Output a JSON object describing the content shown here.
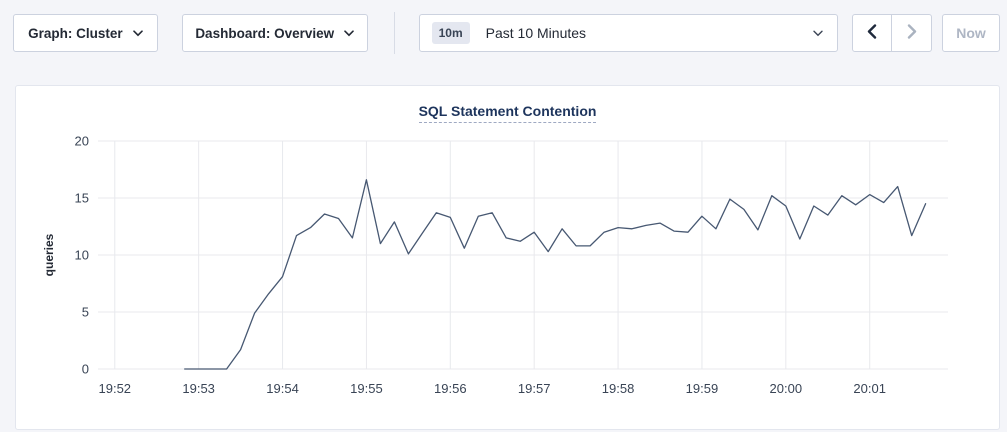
{
  "toolbar": {
    "graph_dropdown_label": "Graph: Cluster",
    "dashboard_dropdown_label": "Dashboard: Overview",
    "time_range": {
      "badge": "10m",
      "label": "Past 10 Minutes"
    },
    "now_label": "Now"
  },
  "colors": {
    "line": "#475872",
    "grid": "#e8e9ed",
    "title": "#1d345c",
    "arrow_enabled": "#1f2a3c",
    "arrow_disabled": "#aab3c0"
  },
  "chart_data": {
    "type": "line",
    "title": "SQL Statement Contention",
    "xlabel": "",
    "ylabel": "queries",
    "ylim": [
      0,
      20
    ],
    "y_ticks": [
      0,
      5,
      10,
      15,
      20
    ],
    "x_domain_s": [
      -12,
      596
    ],
    "x_ticks": [
      {
        "offset_s": 0,
        "label": "19:52"
      },
      {
        "offset_s": 60,
        "label": "19:53"
      },
      {
        "offset_s": 120,
        "label": "19:54"
      },
      {
        "offset_s": 180,
        "label": "19:55"
      },
      {
        "offset_s": 240,
        "label": "19:56"
      },
      {
        "offset_s": 300,
        "label": "19:57"
      },
      {
        "offset_s": 360,
        "label": "19:58"
      },
      {
        "offset_s": 420,
        "label": "19:59"
      },
      {
        "offset_s": 480,
        "label": "20:00"
      },
      {
        "offset_s": 540,
        "label": "20:01"
      }
    ],
    "grid": true,
    "legend": "none",
    "series": [
      {
        "name": "queries",
        "color": "#475872",
        "points": [
          [
            50,
            0
          ],
          [
            60,
            0
          ],
          [
            70,
            0
          ],
          [
            80,
            0
          ],
          [
            90,
            1.7
          ],
          [
            100,
            4.9
          ],
          [
            110,
            6.6
          ],
          [
            120,
            8.1
          ],
          [
            130,
            11.7
          ],
          [
            140,
            12.4
          ],
          [
            150,
            13.6
          ],
          [
            160,
            13.2
          ],
          [
            170,
            11.5
          ],
          [
            180,
            16.6
          ],
          [
            190,
            11.0
          ],
          [
            200,
            12.9
          ],
          [
            210,
            10.1
          ],
          [
            220,
            11.9
          ],
          [
            230,
            13.7
          ],
          [
            240,
            13.3
          ],
          [
            250,
            10.6
          ],
          [
            260,
            13.4
          ],
          [
            270,
            13.7
          ],
          [
            280,
            11.5
          ],
          [
            290,
            11.2
          ],
          [
            300,
            12.0
          ],
          [
            310,
            10.3
          ],
          [
            320,
            12.3
          ],
          [
            330,
            10.8
          ],
          [
            340,
            10.8
          ],
          [
            350,
            12.0
          ],
          [
            360,
            12.4
          ],
          [
            370,
            12.3
          ],
          [
            380,
            12.6
          ],
          [
            390,
            12.8
          ],
          [
            400,
            12.1
          ],
          [
            410,
            12.0
          ],
          [
            420,
            13.4
          ],
          [
            430,
            12.3
          ],
          [
            440,
            14.9
          ],
          [
            450,
            14.0
          ],
          [
            460,
            12.2
          ],
          [
            470,
            15.2
          ],
          [
            480,
            14.3
          ],
          [
            490,
            11.4
          ],
          [
            500,
            14.3
          ],
          [
            510,
            13.5
          ],
          [
            520,
            15.2
          ],
          [
            530,
            14.4
          ],
          [
            540,
            15.3
          ],
          [
            550,
            14.6
          ],
          [
            560,
            16.0
          ],
          [
            570,
            11.7
          ],
          [
            580,
            14.5
          ]
        ]
      }
    ]
  }
}
